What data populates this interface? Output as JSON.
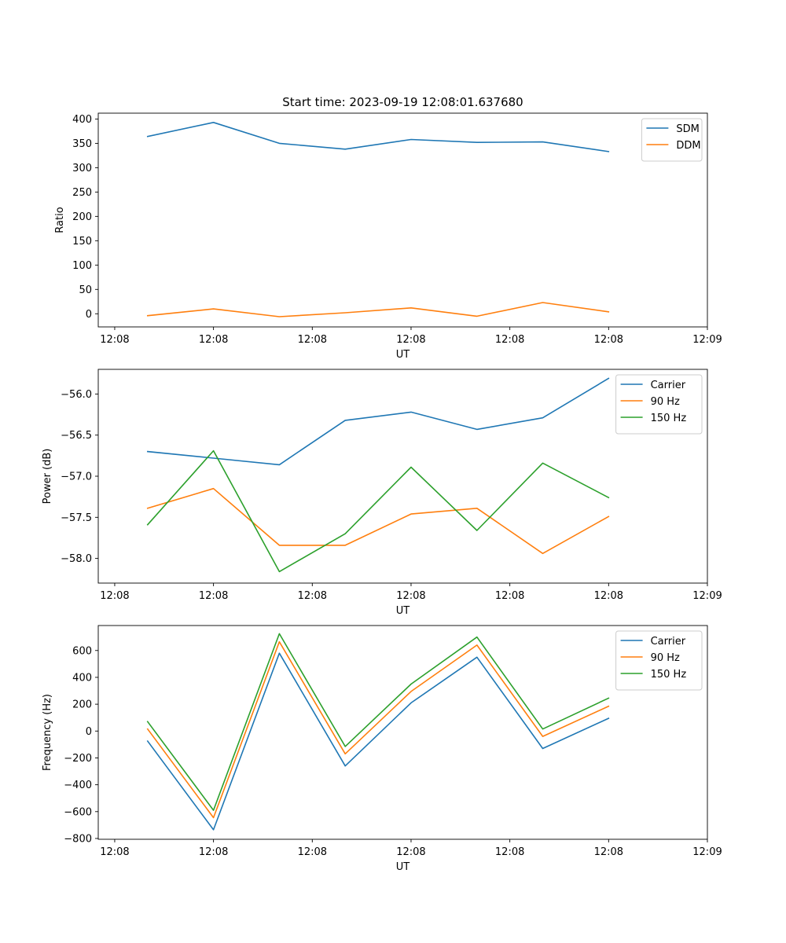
{
  "chart_data": [
    {
      "type": "line",
      "title": "Start time: 2023-09-19 12:08:01.637680",
      "xlabel": "UT",
      "ylabel": "Ratio",
      "x_index": [
        0,
        1,
        2,
        3,
        4,
        5,
        6,
        7
      ],
      "xlim": [
        -0.75,
        8.5
      ],
      "x_ticks": [
        {
          "pos": -0.5,
          "label": "12:08"
        },
        {
          "pos": 1,
          "label": "12:08"
        },
        {
          "pos": 2.5,
          "label": "12:08"
        },
        {
          "pos": 4,
          "label": "12:08"
        },
        {
          "pos": 5.5,
          "label": "12:08"
        },
        {
          "pos": 7,
          "label": "12:08"
        },
        {
          "pos": 8.5,
          "label": "12:09"
        }
      ],
      "ylim": [
        -27,
        412
      ],
      "y_ticks": [
        0,
        50,
        100,
        150,
        200,
        250,
        300,
        350,
        400
      ],
      "legend": "top-right",
      "series": [
        {
          "name": "SDM",
          "color": "#1f77b4",
          "values": [
            364,
            393,
            350,
            338,
            358,
            352,
            353,
            333
          ]
        },
        {
          "name": "DDM",
          "color": "#ff7f0e",
          "values": [
            -4,
            10,
            -6,
            2,
            12,
            -5,
            23,
            4
          ]
        }
      ]
    },
    {
      "type": "line",
      "title": "",
      "xlabel": "UT",
      "ylabel": "Power (dB)",
      "x_index": [
        0,
        1,
        2,
        3,
        4,
        5,
        6,
        7
      ],
      "xlim": [
        -0.75,
        8.5
      ],
      "x_ticks": [
        {
          "pos": -0.5,
          "label": "12:08"
        },
        {
          "pos": 1,
          "label": "12:08"
        },
        {
          "pos": 2.5,
          "label": "12:08"
        },
        {
          "pos": 4,
          "label": "12:08"
        },
        {
          "pos": 5.5,
          "label": "12:08"
        },
        {
          "pos": 7,
          "label": "12:08"
        },
        {
          "pos": 8.5,
          "label": "12:09"
        }
      ],
      "ylim": [
        -58.3,
        -55.7
      ],
      "y_ticks": [
        -58.0,
        -57.5,
        -57.0,
        -56.5,
        -56.0
      ],
      "y_tick_labels": [
        "−58.0",
        "−57.5",
        "−57.0",
        "−56.5",
        "−56.0"
      ],
      "legend": "top-right",
      "series": [
        {
          "name": "Carrier",
          "color": "#1f77b4",
          "values": [
            -56.7,
            -56.78,
            -56.86,
            -56.32,
            -56.22,
            -56.43,
            -56.29,
            -55.81
          ]
        },
        {
          "name": "90 Hz",
          "color": "#ff7f0e",
          "values": [
            -57.39,
            -57.15,
            -57.84,
            -57.84,
            -57.46,
            -57.39,
            -57.94,
            -57.49
          ]
        },
        {
          "name": "150 Hz",
          "color": "#2ca02c",
          "values": [
            -57.59,
            -56.69,
            -58.16,
            -57.7,
            -56.89,
            -57.66,
            -56.84,
            -57.26
          ]
        }
      ]
    },
    {
      "type": "line",
      "title": "",
      "xlabel": "UT",
      "ylabel": "Frequency (Hz)",
      "x_index": [
        0,
        1,
        2,
        3,
        4,
        5,
        6,
        7
      ],
      "xlim": [
        -0.75,
        8.5
      ],
      "x_ticks": [
        {
          "pos": -0.5,
          "label": "12:08"
        },
        {
          "pos": 1,
          "label": "12:08"
        },
        {
          "pos": 2.5,
          "label": "12:08"
        },
        {
          "pos": 4,
          "label": "12:08"
        },
        {
          "pos": 5.5,
          "label": "12:08"
        },
        {
          "pos": 7,
          "label": "12:08"
        },
        {
          "pos": 8.5,
          "label": "12:09"
        }
      ],
      "ylim": [
        -806,
        786
      ],
      "y_ticks": [
        -800,
        -600,
        -400,
        -200,
        0,
        200,
        400,
        600
      ],
      "y_tick_labels": [
        "−800",
        "−600",
        "−400",
        "−200",
        "0",
        "200",
        "400",
        "600"
      ],
      "legend": "top-right",
      "series": [
        {
          "name": "Carrier",
          "color": "#1f77b4",
          "values": [
            -75,
            -735,
            580,
            -260,
            210,
            550,
            -130,
            95
          ]
        },
        {
          "name": "90 Hz",
          "color": "#ff7f0e",
          "values": [
            15,
            -645,
            665,
            -170,
            295,
            640,
            -40,
            185
          ]
        },
        {
          "name": "150 Hz",
          "color": "#2ca02c",
          "values": [
            70,
            -590,
            725,
            -115,
            350,
            700,
            15,
            245
          ]
        }
      ]
    }
  ]
}
